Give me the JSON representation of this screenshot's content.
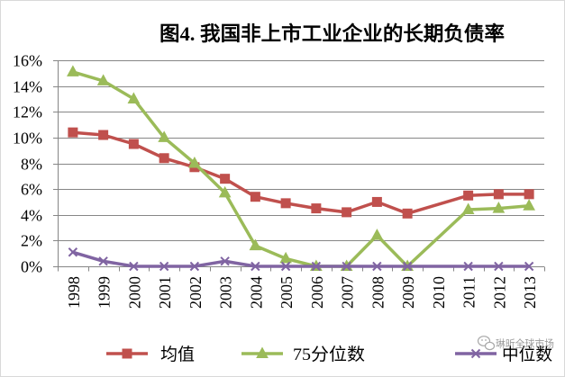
{
  "chart_data": {
    "type": "line",
    "title": "图4. 我国非上市工业企业的长期负债率",
    "categories": [
      "1998",
      "1999",
      "2000",
      "2001",
      "2002",
      "2003",
      "2004",
      "2005",
      "2006",
      "2007",
      "2008",
      "2009",
      "2010",
      "2011",
      "2012",
      "2013"
    ],
    "series": [
      {
        "name": "均值",
        "color": "#C0504D",
        "values": [
          10.4,
          10.2,
          9.5,
          8.4,
          7.7,
          6.8,
          5.4,
          4.9,
          4.5,
          4.2,
          5.0,
          4.1,
          null,
          5.5,
          5.6,
          5.6
        ]
      },
      {
        "name": "75分位数",
        "color": "#9BBB59",
        "values": [
          15.1,
          14.4,
          13.0,
          10.0,
          8.0,
          5.7,
          1.6,
          0.6,
          0.0,
          0.0,
          2.4,
          0.0,
          null,
          4.4,
          4.5,
          4.7
        ]
      },
      {
        "name": "中位数",
        "color": "#8064A2",
        "values": [
          1.1,
          0.4,
          0.0,
          0.0,
          0.0,
          0.4,
          0.0,
          0.0,
          0.0,
          0.0,
          0.0,
          0.0,
          null,
          0.0,
          0.0,
          0.0
        ]
      }
    ],
    "ylim": [
      0,
      16
    ],
    "yticks": [
      0,
      2,
      4,
      6,
      8,
      10,
      12,
      14,
      16
    ],
    "ytick_labels": [
      "0%",
      "2%",
      "4%",
      "6%",
      "8%",
      "10%",
      "12%",
      "14%",
      "16%"
    ],
    "grid": true,
    "legend": "bottom"
  },
  "watermark": {
    "icon": "wechat-icon",
    "text": "琳昕全球市场"
  }
}
